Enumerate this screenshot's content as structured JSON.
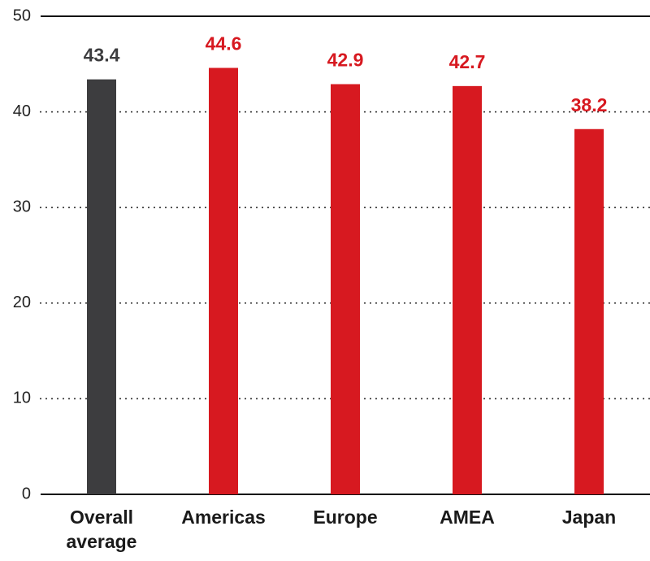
{
  "chart_data": {
    "type": "bar",
    "categories": [
      "Overall average",
      "Americas",
      "Europe",
      "AMEA",
      "Japan"
    ],
    "values": [
      43.4,
      44.6,
      42.9,
      42.7,
      38.2
    ],
    "colors": [
      "#3d3d3f",
      "#d71920",
      "#d71920",
      "#d71920",
      "#d71920"
    ],
    "ylim": [
      0,
      50
    ],
    "yticks": [
      0,
      10,
      20,
      30,
      40,
      50
    ],
    "grid": true
  }
}
